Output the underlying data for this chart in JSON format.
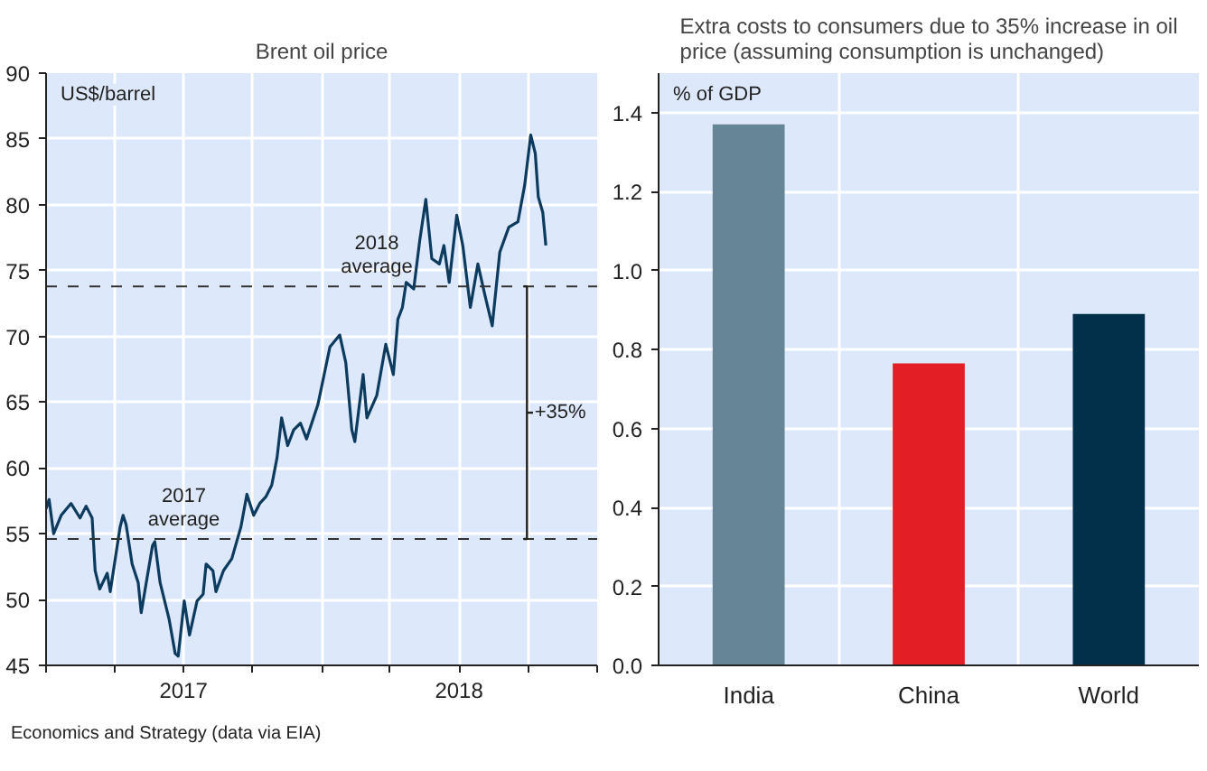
{
  "chart_data": [
    {
      "type": "line",
      "title": "Brent oil price",
      "ylabel": "US$/barrel",
      "series": [
        {
          "color": "#0d3b5e",
          "x": [
            "2017-01-01",
            "2017-01-05",
            "2017-01-11",
            "2017-01-21",
            "2017-02-03",
            "2017-02-15",
            "2017-02-23",
            "2017-03-03",
            "2017-03-07",
            "2017-03-13",
            "2017-03-23",
            "2017-03-27",
            "2017-04-09",
            "2017-04-13",
            "2017-04-17",
            "2017-04-25",
            "2017-05-03",
            "2017-05-07",
            "2017-05-22",
            "2017-05-25",
            "2017-06-01",
            "2017-06-13",
            "2017-06-21",
            "2017-06-25",
            "2017-07-03",
            "2017-07-10",
            "2017-07-20",
            "2017-07-28",
            "2017-08-01",
            "2017-08-10",
            "2017-08-14",
            "2017-08-24",
            "2017-09-04",
            "2017-09-16",
            "2017-09-24",
            "2017-10-03",
            "2017-10-11",
            "2017-10-19",
            "2017-10-27",
            "2017-11-03",
            "2017-11-09",
            "2017-11-17",
            "2017-11-25",
            "2017-12-04",
            "2017-12-12",
            "2017-12-27",
            "2018-01-12",
            "2018-01-25",
            "2018-02-02",
            "2018-02-10",
            "2018-02-14",
            "2018-02-25",
            "2018-03-02",
            "2018-03-15",
            "2018-03-27",
            "2018-04-06",
            "2018-04-12",
            "2018-04-18",
            "2018-04-23",
            "2018-05-03",
            "2018-05-11",
            "2018-05-19",
            "2018-05-27",
            "2018-06-06",
            "2018-06-12",
            "2018-06-19",
            "2018-06-29",
            "2018-07-07",
            "2018-07-17",
            "2018-07-27",
            "2018-08-05",
            "2018-08-15",
            "2018-08-25",
            "2018-09-06",
            "2018-09-18",
            "2018-09-27",
            "2018-10-05",
            "2018-10-11",
            "2018-10-15",
            "2018-10-21",
            "2018-10-25"
          ],
          "values": [
            56.9,
            57.6,
            55.0,
            56.4,
            57.3,
            56.2,
            57.1,
            56.2,
            52.2,
            50.8,
            52.0,
            50.6,
            55.5,
            56.4,
            55.7,
            52.7,
            51.3,
            49.0,
            54.1,
            54.4,
            51.3,
            48.5,
            45.9,
            45.7,
            49.9,
            47.3,
            49.9,
            50.4,
            52.7,
            52.2,
            50.6,
            52.2,
            53.1,
            55.5,
            58.0,
            56.4,
            57.3,
            57.8,
            58.7,
            60.8,
            63.8,
            61.7,
            62.9,
            63.4,
            62.2,
            64.8,
            69.2,
            70.1,
            68.0,
            62.9,
            62.0,
            67.1,
            63.8,
            65.5,
            69.4,
            67.1,
            71.3,
            72.2,
            74.1,
            73.6,
            77.3,
            80.4,
            75.9,
            75.5,
            76.9,
            74.1,
            79.2,
            76.9,
            72.2,
            75.5,
            73.2,
            70.8,
            76.4,
            78.3,
            78.7,
            81.5,
            85.3,
            83.9,
            80.6,
            79.4,
            76.9
          ]
        }
      ],
      "xlim": [
        "2017-01-01",
        "2019-01-01"
      ],
      "xticks": [
        {
          "value": "2017-01-01",
          "label": null
        },
        {
          "value": "2017-04-01",
          "label": null
        },
        {
          "value": "2017-07-02",
          "label": "2017"
        },
        {
          "value": "2017-10-01",
          "label": null
        },
        {
          "value": "2018-01-01",
          "label": null
        },
        {
          "value": "2018-04-01",
          "label": null
        },
        {
          "value": "2018-07-02",
          "label": "2018"
        },
        {
          "value": "2018-10-01",
          "label": null
        },
        {
          "value": "2019-01-01",
          "label": null
        }
      ],
      "ylim": [
        45,
        90
      ],
      "yticks": [
        45,
        50,
        55,
        60,
        65,
        70,
        75,
        80,
        85,
        90
      ],
      "grid": true,
      "line_style": "solid",
      "ref_lines": [
        {
          "axis": "y",
          "value": 54.6,
          "label": "2017 average",
          "color": "#333333",
          "line_style": "dashed"
        },
        {
          "axis": "y",
          "value": 73.8,
          "label": "2018 average",
          "color": "#333333",
          "line_style": "dashed"
        }
      ],
      "annotations": [
        "+35%",
        "Economics and Strategy (data via EIA)"
      ]
    },
    {
      "type": "bar",
      "title": "Extra costs to consumers due to 35% increase in oil price (assuming consumption is unchanged)",
      "ylabel": "% of GDP",
      "categories": [
        "India",
        "China",
        "World"
      ],
      "values": [
        1.37,
        0.765,
        0.89
      ],
      "colors": [
        "#668596",
        "#e31e24",
        "#02304a"
      ],
      "ylim": [
        0,
        1.5
      ],
      "yticks": [
        {
          "value": 0,
          "label": "0.0"
        },
        {
          "value": 0.2,
          "label": "0.2"
        },
        {
          "value": 0.4,
          "label": "0.4"
        },
        {
          "value": 0.6,
          "label": "0.6"
        },
        {
          "value": 0.8,
          "label": "0.8"
        },
        {
          "value": 1.0,
          "label": "1.0"
        },
        {
          "value": 1.2,
          "label": "1.2"
        },
        {
          "value": 1.4,
          "label": "1.4"
        }
      ],
      "grid": true
    }
  ]
}
